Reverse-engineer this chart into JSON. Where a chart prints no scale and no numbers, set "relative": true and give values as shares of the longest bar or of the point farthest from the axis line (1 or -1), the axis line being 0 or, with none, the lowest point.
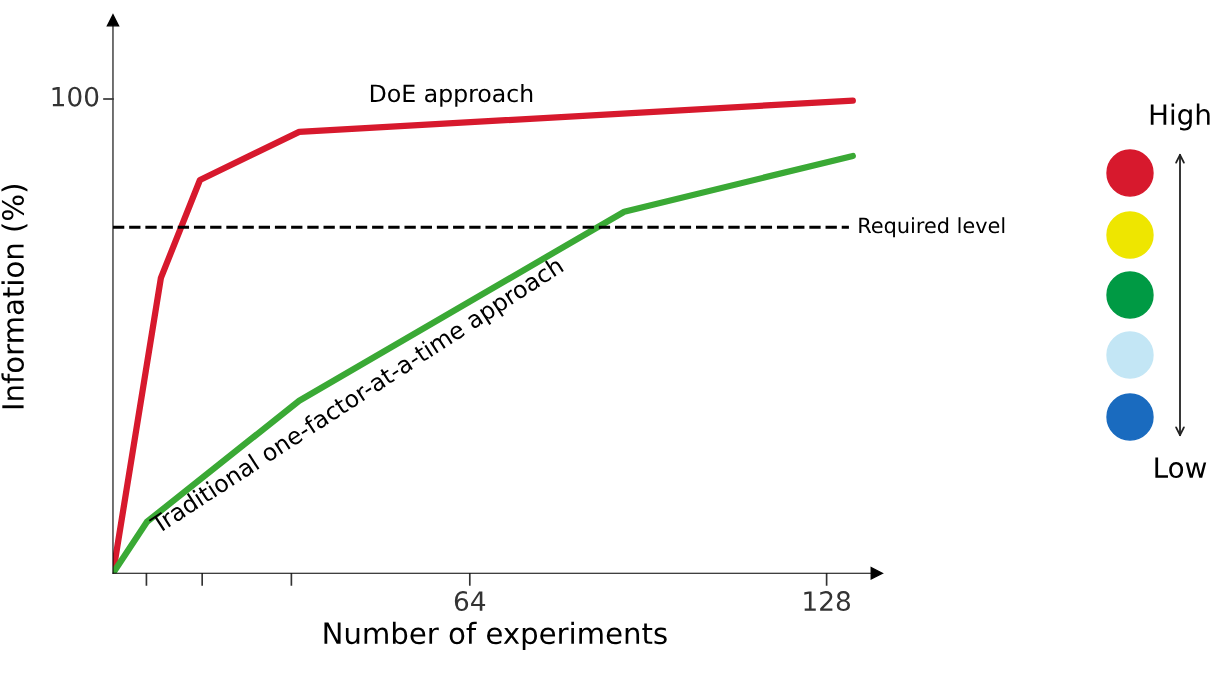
{
  "chart_data": {
    "type": "line",
    "xlabel": "Number of experiments",
    "ylabel": "Information (%)",
    "relative": true,
    "series": [
      {
        "name": "DoE approach",
        "color": "#d7192d",
        "x": [
          0,
          8.6,
          15.6,
          33.4,
          132.7
        ],
        "values": [
          0,
          0.625,
          0.832,
          0.934,
          1
        ]
      },
      {
        "name": "Traditional one-factor-at-a-time approach",
        "color": "#3aa935",
        "x": [
          0,
          6.1,
          33.4,
          91.7,
          132.7
        ],
        "values": [
          0,
          0.109,
          0.365,
          0.765,
          0.883
        ]
      }
    ],
    "xlim": [
      0,
      137
    ],
    "xticks": [
      {
        "value": 6,
        "label": null
      },
      {
        "value": 16,
        "label": null
      },
      {
        "value": 32,
        "label": null
      },
      64,
      128
    ],
    "ref_lines": [
      {
        "axis": "y",
        "value": 0.732,
        "label": "Required level",
        "color": "#000000",
        "line_style": "dashed"
      }
    ],
    "annotations": [
      "100",
      "High",
      "Low"
    ],
    "grid": false,
    "legend": false,
    "marker": "none",
    "line_style": "solid"
  }
}
